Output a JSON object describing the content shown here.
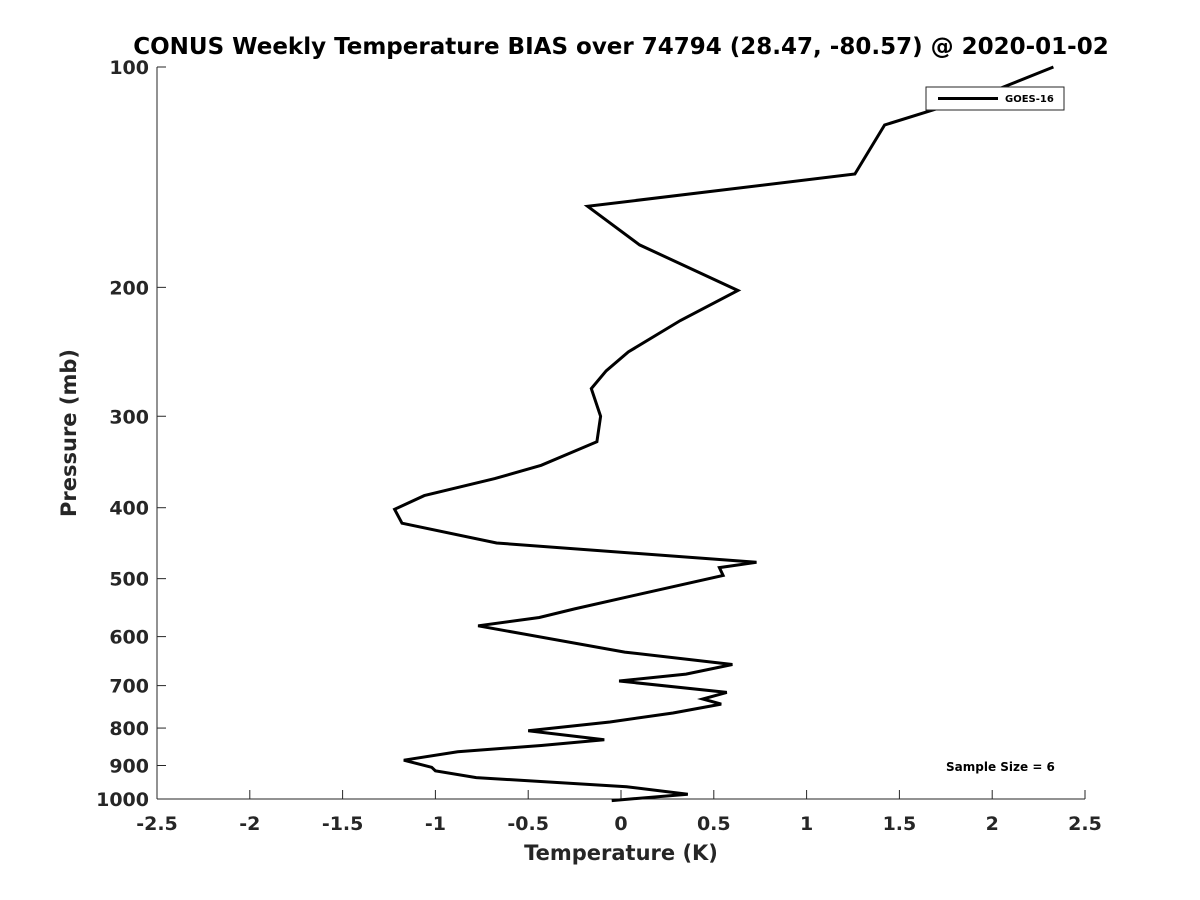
{
  "chart_data": {
    "type": "line",
    "title": "CONUS Weekly Temperature BIAS over 74794 (28.47, -80.57) @ 2020-01-02",
    "xlabel": "Temperature (K)",
    "ylabel": "Pressure (mb)",
    "xlim": [
      -2.5,
      2.5
    ],
    "ylim": [
      100,
      1000
    ],
    "y_scale": "log",
    "y_reversed": true,
    "grid": false,
    "legend_position": "top-right",
    "x_ticks": [
      -2.5,
      -2,
      -1.5,
      -1,
      -0.5,
      0,
      0.5,
      1,
      1.5,
      2,
      2.5
    ],
    "x_tick_labels": [
      "-2.5",
      "-2",
      "-1.5",
      "-1",
      "-0.5",
      "0",
      "0.5",
      "1",
      "1.5",
      "2",
      "2.5"
    ],
    "y_ticks": [
      100,
      200,
      300,
      400,
      500,
      600,
      700,
      800,
      900,
      1000
    ],
    "y_tick_labels": [
      "100",
      "200",
      "300",
      "400",
      "500",
      "600",
      "700",
      "800",
      "900",
      "1000"
    ],
    "series": [
      {
        "name": "GOES-16",
        "color": "#000000",
        "x": [
          2.33,
          2.0,
          1.42,
          1.26,
          -0.18,
          0.1,
          0.63,
          0.32,
          0.04,
          -0.08,
          -0.16,
          -0.11,
          -0.13,
          -0.43,
          -0.68,
          -1.06,
          -1.22,
          -1.18,
          -0.67,
          0.73,
          0.53,
          0.55,
          0.1,
          -0.25,
          -0.44,
          -0.77,
          0.02,
          0.6,
          0.35,
          -0.01,
          0.57,
          0.44,
          0.54,
          0.28,
          -0.06,
          -0.5,
          -0.09,
          -0.43,
          -0.88,
          -1.17,
          -1.02,
          -1.0,
          -0.78,
          0.03,
          0.36,
          -0.05
        ],
        "y": [
          100,
          108,
          120,
          140,
          155,
          175,
          202,
          222,
          245,
          260,
          275,
          300,
          325,
          350,
          365,
          385,
          402,
          420,
          447,
          475,
          483,
          495,
          525,
          550,
          565,
          580,
          630,
          655,
          675,
          690,
          715,
          730,
          742,
          763,
          785,
          807,
          830,
          845,
          862,
          885,
          905,
          915,
          935,
          962,
          985,
          1005
        ]
      }
    ],
    "annotations": [
      {
        "text": "Sample Size = 6",
        "position": "bottom-right"
      }
    ]
  }
}
